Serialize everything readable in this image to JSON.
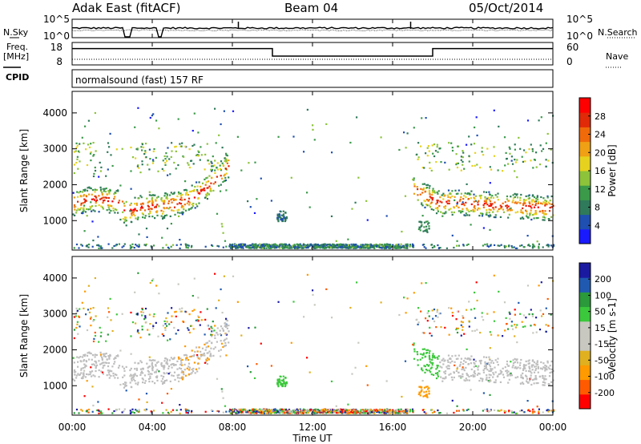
{
  "header": {
    "station": "Adak East (fitACF)",
    "beam": "Beam 04",
    "date": "05/Oct/2014"
  },
  "side_labels": {
    "nsky": "N.Sky",
    "freq_line1": "Freq.",
    "freq_line2": "[MHz]",
    "cpid": "CPID",
    "nsearch": "N.Search",
    "nave": "Nave"
  },
  "cpid_text": "normalsound (fast) 157 RF",
  "colors": {
    "power": [
      "#1a1aff",
      "#1f4fb0",
      "#2f7a5a",
      "#3b9a4a",
      "#8cc33a",
      "#e6d21e",
      "#f0a014",
      "#f06a0a",
      "#e02a08",
      "#ff0000"
    ],
    "velocity": [
      "#ff0000",
      "#ff5a00",
      "#ff9a00",
      "#e0b020",
      "#c8c8c0",
      "#c8c8c0",
      "#3cc83c",
      "#2a9a3a",
      "#1f5ab0",
      "#1a1aa0"
    ],
    "ground": "#bebebe"
  },
  "chart_data": [
    {
      "type": "line",
      "name": "noise-panel",
      "left_ticks": [
        "10^5",
        "10^0"
      ],
      "right_ticks": [
        "10^5",
        "10^0"
      ]
    },
    {
      "type": "line",
      "name": "frequency-panel",
      "left_ticks": [
        "18",
        "8"
      ],
      "right_ticks": [
        "60",
        "0"
      ],
      "freq_segments": [
        {
          "x0": 0,
          "x1": 10,
          "mhz": 15.2
        },
        {
          "x0": 10,
          "x1": 18,
          "mhz": 10.5
        },
        {
          "x0": 18,
          "x1": 24,
          "mhz": 15.2
        }
      ],
      "nave_value": 15
    },
    {
      "type": "heatmap",
      "name": "power",
      "ylabel": "Slant Range [km]",
      "yticks": [
        "4000",
        "3000",
        "2000",
        "1000"
      ],
      "colorbar_label": "Power [dB]",
      "colorbar_ticks": [
        "28",
        "24",
        "20",
        "16",
        "12",
        "8",
        "4"
      ],
      "colorbar_range": [
        0,
        30
      ],
      "ylim": [
        180,
        4600
      ]
    },
    {
      "type": "heatmap",
      "name": "velocity",
      "ylabel": "Slant Range [km]",
      "yticks": [
        "4000",
        "3000",
        "2000",
        "1000"
      ],
      "colorbar_label": "Velocity [m s-1]",
      "colorbar_ticks": [
        "200",
        "100",
        "50",
        "15",
        "-15",
        "-50",
        "-100",
        "-200"
      ],
      "ylim": [
        180,
        4600
      ]
    }
  ],
  "xaxis": {
    "ticks": [
      "00:00",
      "04:00",
      "08:00",
      "12:00",
      "16:00",
      "20:00",
      "00:00"
    ],
    "label": "Time UT",
    "range_hours": [
      0,
      24
    ]
  }
}
